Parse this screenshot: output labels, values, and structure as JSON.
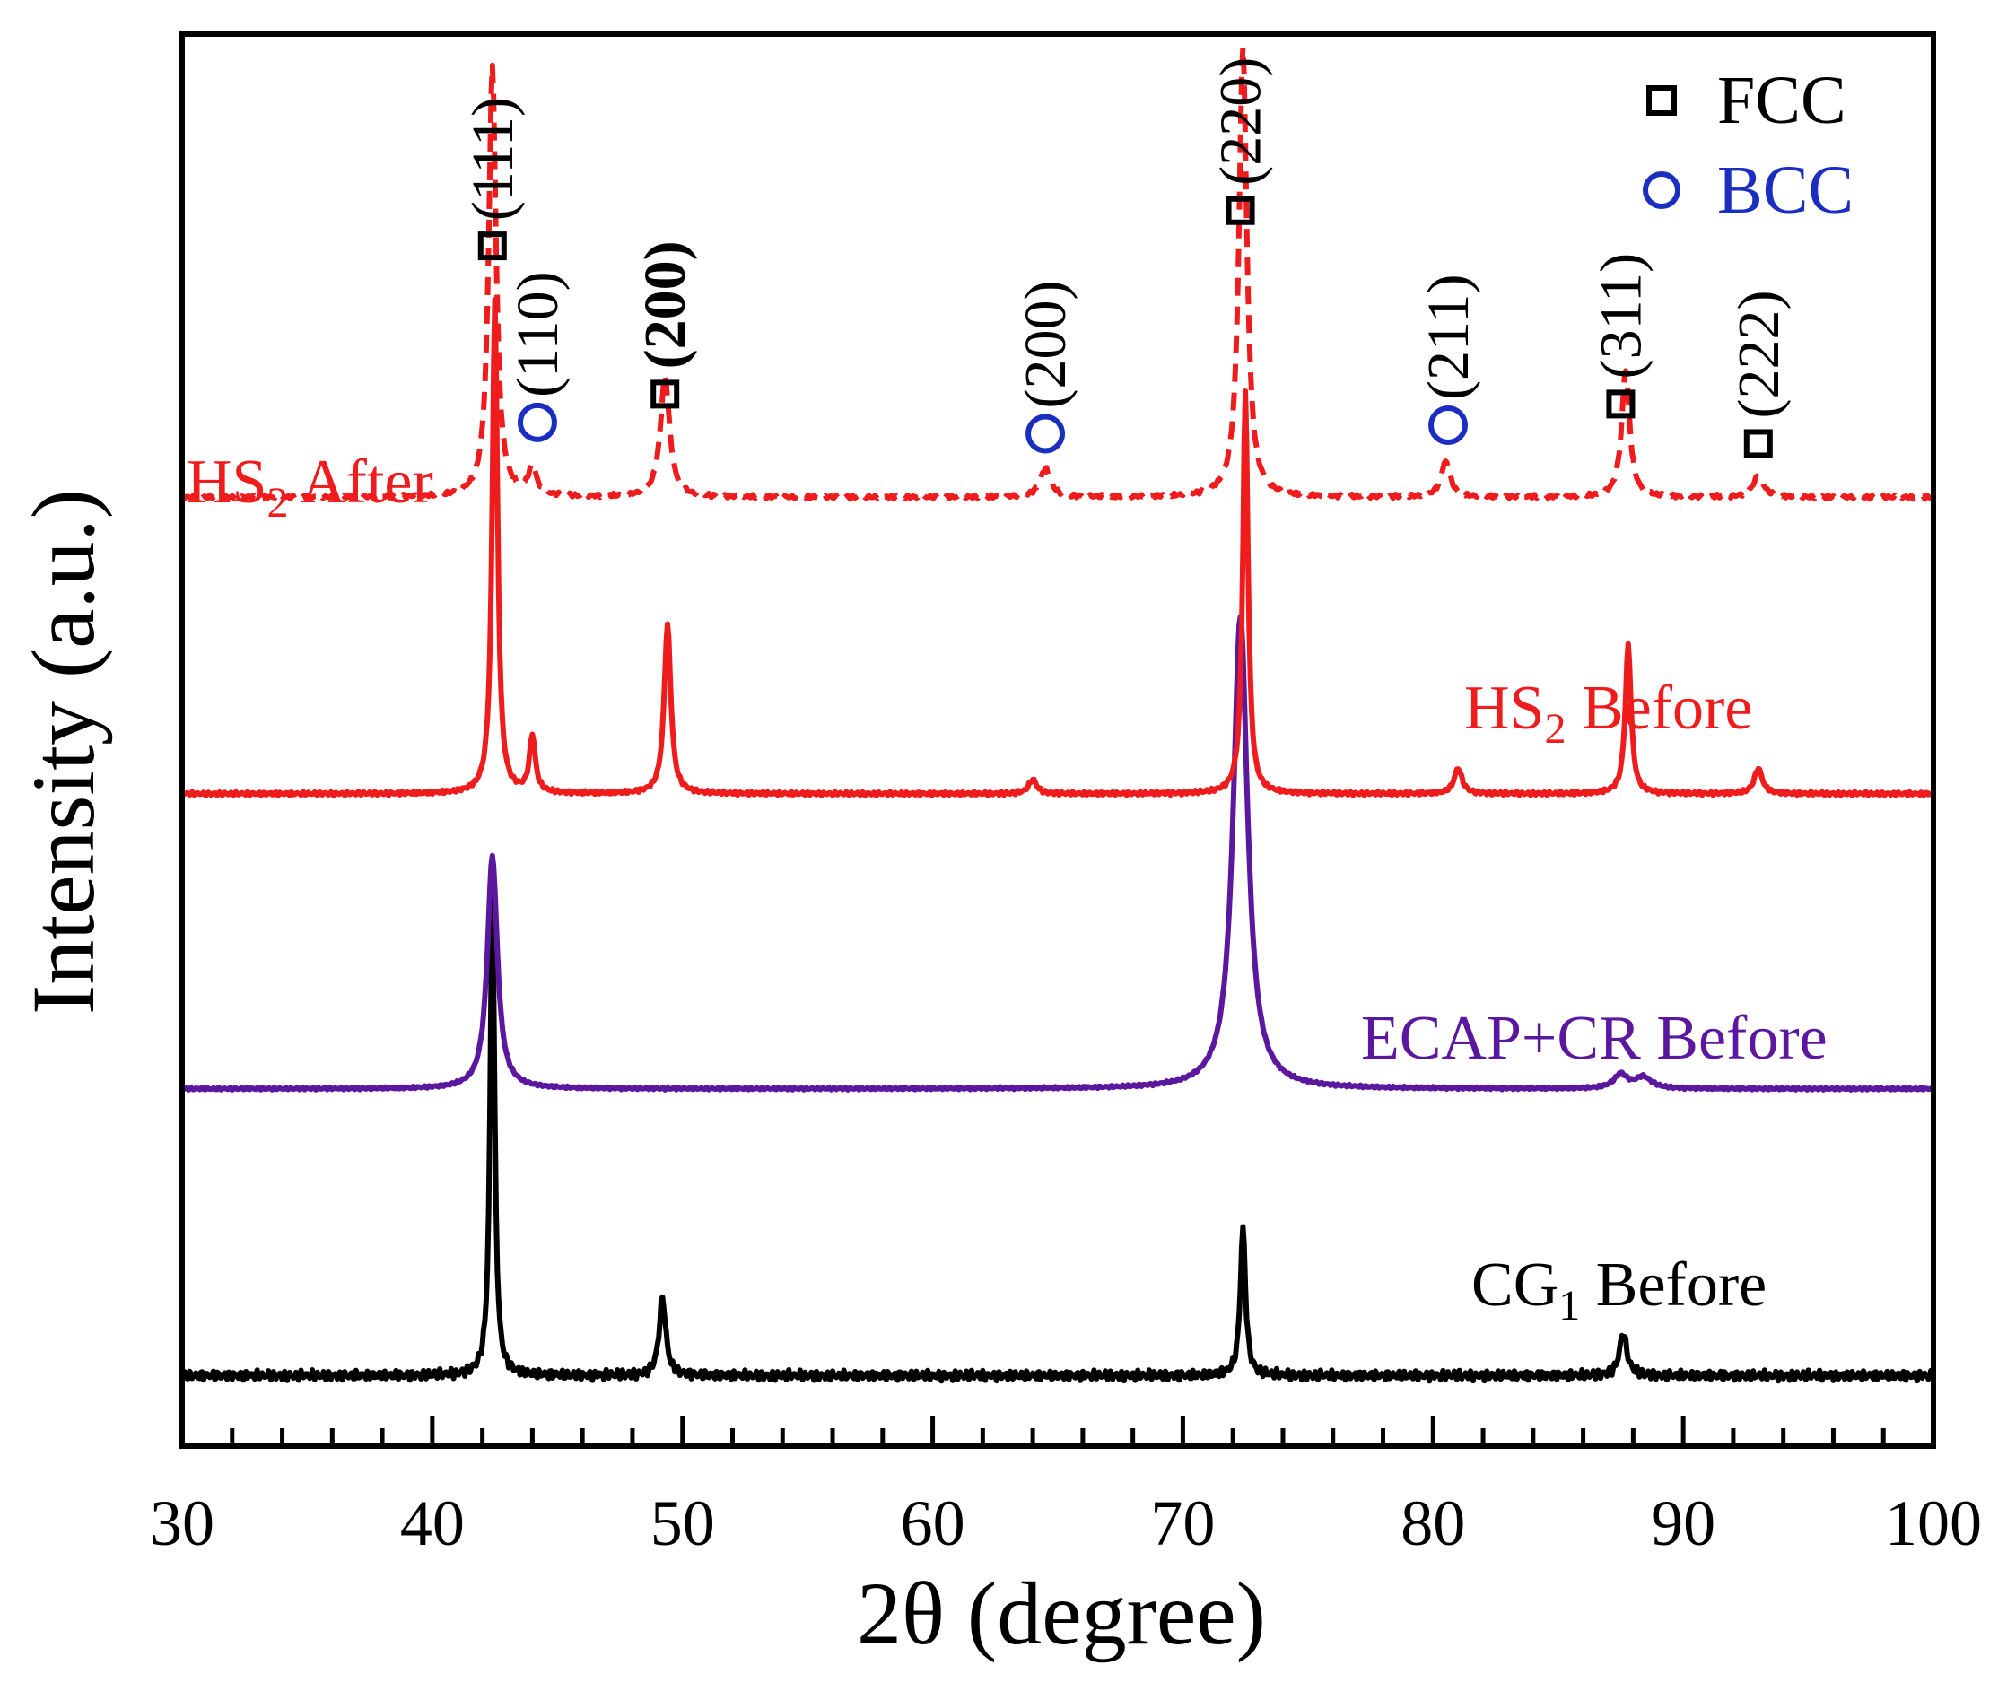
{
  "chart_data": {
    "type": "line",
    "title": "",
    "xlabel": "2θ (degree)",
    "ylabel": "Intensity (a.u.)",
    "xlim": [
      30,
      100
    ],
    "ylim": [
      0,
      1
    ],
    "x_ticks": [
      "30",
      "40",
      "50",
      "60",
      "70",
      "80",
      "90",
      "100"
    ],
    "grid": false,
    "legend": {
      "position": "top-right",
      "entries": [
        {
          "marker": "square",
          "label": "FCC",
          "color": "#000000"
        },
        {
          "marker": "circle",
          "label": "BCC",
          "color": "#1a2fbf"
        }
      ]
    },
    "series": [
      {
        "name": "CG1 Before",
        "label_main": "CG",
        "label_sub": "1",
        "label_rest": " Before",
        "color": "#000000",
        "dash": false,
        "baseline": 0.05,
        "noise": 0.004,
        "peaks": [
          [
            42.4,
            0.34,
            0.17
          ],
          [
            49.2,
            0.055,
            0.25
          ],
          [
            72.4,
            0.105,
            0.2
          ],
          [
            87.6,
            0.03,
            0.28
          ]
        ]
      },
      {
        "name": "ECAP+CR Before",
        "label_main": "ECAP+CR Before",
        "label_sub": "",
        "label_rest": "",
        "color": "#5b189f",
        "dash": false,
        "baseline": 0.253,
        "noise": 0.001,
        "peaks": [
          [
            42.4,
            0.165,
            0.38
          ],
          [
            72.3,
            0.335,
            0.55
          ],
          [
            87.5,
            0.01,
            0.5
          ],
          [
            88.4,
            0.008,
            0.6
          ]
        ]
      },
      {
        "name": "HS2 Before",
        "label_main": "HS",
        "label_sub": "2",
        "label_rest": " Before",
        "color": "#ee1c1c",
        "dash": false,
        "baseline": 0.462,
        "noise": 0.0015,
        "peaks": [
          [
            42.5,
            0.35,
            0.2
          ],
          [
            44.0,
            0.04,
            0.22
          ],
          [
            49.4,
            0.12,
            0.25
          ],
          [
            64.0,
            0.01,
            0.3
          ],
          [
            72.5,
            0.285,
            0.2
          ],
          [
            81.0,
            0.018,
            0.3
          ],
          [
            87.8,
            0.105,
            0.22
          ],
          [
            93.0,
            0.018,
            0.3
          ]
        ]
      },
      {
        "name": "HS2 After",
        "label_main": "HS",
        "label_sub": "2",
        "label_rest": " After",
        "color": "#ee1c1c",
        "dash": true,
        "baseline": 0.672,
        "noise": 0.0015,
        "peaks": [
          [
            42.4,
            0.305,
            0.28
          ],
          [
            44.0,
            0.02,
            0.3
          ],
          [
            49.3,
            0.085,
            0.35
          ],
          [
            64.5,
            0.02,
            0.4
          ],
          [
            72.4,
            0.32,
            0.3
          ],
          [
            80.5,
            0.025,
            0.35
          ],
          [
            87.7,
            0.09,
            0.3
          ],
          [
            93.0,
            0.015,
            0.4
          ]
        ]
      }
    ],
    "annotations": [
      {
        "label": "(111)",
        "phase": "FCC",
        "x": 42.4,
        "y": 0.85,
        "bold": false
      },
      {
        "label": "(110)",
        "phase": "BCC",
        "x": 44.2,
        "y": 0.725,
        "bold": false
      },
      {
        "label": "(200)",
        "phase": "FCC",
        "x": 49.3,
        "y": 0.745,
        "bold": true
      },
      {
        "label": "(200)",
        "phase": "BCC",
        "x": 64.5,
        "y": 0.717,
        "bold": false
      },
      {
        "label": "(220)",
        "phase": "FCC",
        "x": 72.3,
        "y": 0.875,
        "bold": false
      },
      {
        "label": "(211)",
        "phase": "BCC",
        "x": 80.6,
        "y": 0.723,
        "bold": false
      },
      {
        "label": "(311)",
        "phase": "FCC",
        "x": 87.5,
        "y": 0.738,
        "bold": false
      },
      {
        "label": "(222)",
        "phase": "FCC",
        "x": 93.0,
        "y": 0.71,
        "bold": false
      }
    ]
  }
}
